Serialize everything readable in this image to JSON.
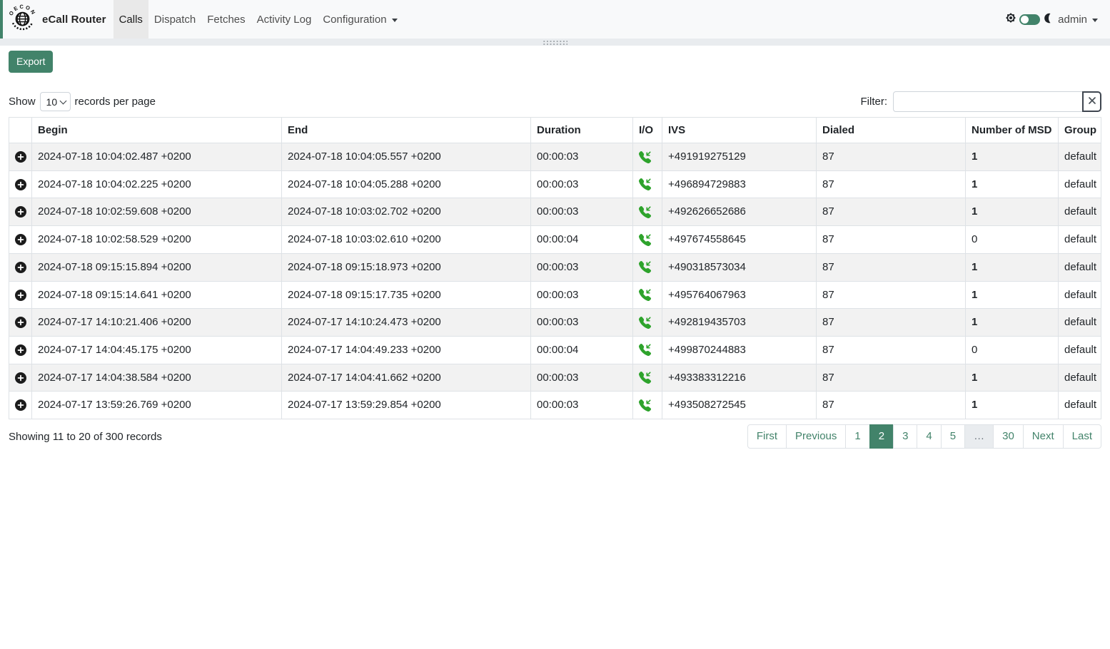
{
  "colors": {
    "accent": "#42836a",
    "phone_green": "#2ea32c",
    "navbar_bg": "#f8f9fa",
    "stripe": "#f2f2f2",
    "border": "#dee2e6"
  },
  "navbar": {
    "brand": "eCall Router",
    "logo_text": "OECON",
    "items": [
      {
        "label": "Calls",
        "active": true,
        "dropdown": false
      },
      {
        "label": "Dispatch",
        "active": false,
        "dropdown": false
      },
      {
        "label": "Fetches",
        "active": false,
        "dropdown": false
      },
      {
        "label": "Activity Log",
        "active": false,
        "dropdown": false
      },
      {
        "label": "Configuration",
        "active": false,
        "dropdown": true
      }
    ],
    "user": "admin"
  },
  "toolbar": {
    "export_label": "Export"
  },
  "length_control": {
    "prefix": "Show",
    "selected": "10",
    "suffix": "records per page"
  },
  "filter": {
    "label": "Filter:",
    "value": "",
    "clear_label": "clear"
  },
  "table": {
    "columns": [
      "",
      "Begin",
      "End",
      "Duration",
      "I/O",
      "IVS",
      "Dialed",
      "Number of MSD",
      "Group"
    ],
    "rows": [
      {
        "begin": "2024-07-18 10:04:02.487 +0200",
        "end": "2024-07-18 10:04:05.557 +0200",
        "duration": "00:00:03",
        "io": "incoming",
        "ivs": "+491919275129",
        "dialed": "87",
        "msd": "1",
        "group": "default"
      },
      {
        "begin": "2024-07-18 10:04:02.225 +0200",
        "end": "2024-07-18 10:04:05.288 +0200",
        "duration": "00:00:03",
        "io": "incoming",
        "ivs": "+496894729883",
        "dialed": "87",
        "msd": "1",
        "group": "default"
      },
      {
        "begin": "2024-07-18 10:02:59.608 +0200",
        "end": "2024-07-18 10:03:02.702 +0200",
        "duration": "00:00:03",
        "io": "incoming",
        "ivs": "+492626652686",
        "dialed": "87",
        "msd": "1",
        "group": "default"
      },
      {
        "begin": "2024-07-18 10:02:58.529 +0200",
        "end": "2024-07-18 10:03:02.610 +0200",
        "duration": "00:00:04",
        "io": "incoming",
        "ivs": "+497674558645",
        "dialed": "87",
        "msd": "0",
        "group": "default"
      },
      {
        "begin": "2024-07-18 09:15:15.894 +0200",
        "end": "2024-07-18 09:15:18.973 +0200",
        "duration": "00:00:03",
        "io": "incoming",
        "ivs": "+490318573034",
        "dialed": "87",
        "msd": "1",
        "group": "default"
      },
      {
        "begin": "2024-07-18 09:15:14.641 +0200",
        "end": "2024-07-18 09:15:17.735 +0200",
        "duration": "00:00:03",
        "io": "incoming",
        "ivs": "+495764067963",
        "dialed": "87",
        "msd": "1",
        "group": "default"
      },
      {
        "begin": "2024-07-17 14:10:21.406 +0200",
        "end": "2024-07-17 14:10:24.473 +0200",
        "duration": "00:00:03",
        "io": "incoming",
        "ivs": "+492819435703",
        "dialed": "87",
        "msd": "1",
        "group": "default"
      },
      {
        "begin": "2024-07-17 14:04:45.175 +0200",
        "end": "2024-07-17 14:04:49.233 +0200",
        "duration": "00:00:04",
        "io": "incoming",
        "ivs": "+499870244883",
        "dialed": "87",
        "msd": "0",
        "group": "default"
      },
      {
        "begin": "2024-07-17 14:04:38.584 +0200",
        "end": "2024-07-17 14:04:41.662 +0200",
        "duration": "00:00:03",
        "io": "incoming",
        "ivs": "+493383312216",
        "dialed": "87",
        "msd": "1",
        "group": "default"
      },
      {
        "begin": "2024-07-17 13:59:26.769 +0200",
        "end": "2024-07-17 13:59:29.854 +0200",
        "duration": "00:00:03",
        "io": "incoming",
        "ivs": "+493508272545",
        "dialed": "87",
        "msd": "1",
        "group": "default"
      }
    ]
  },
  "summary": "Showing 11 to 20 of 300 records",
  "pagination": {
    "items": [
      "First",
      "Previous",
      "1",
      "2",
      "3",
      "4",
      "5",
      "…",
      "30",
      "Next",
      "Last"
    ],
    "active": "2",
    "disabled": [
      "…"
    ]
  }
}
